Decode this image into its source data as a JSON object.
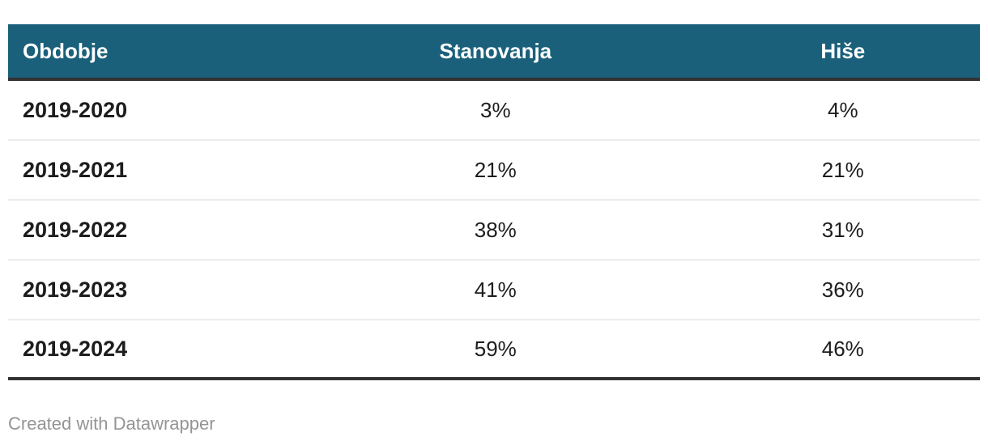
{
  "table": {
    "columns": [
      {
        "label": "Obdobje"
      },
      {
        "label": "Stanovanja"
      },
      {
        "label": "Hiše"
      }
    ],
    "rows": [
      {
        "cells": [
          "2019-2020",
          "3%",
          "4%"
        ]
      },
      {
        "cells": [
          "2019-2021",
          "21%",
          "21%"
        ]
      },
      {
        "cells": [
          "2019-2022",
          "38%",
          "31%"
        ]
      },
      {
        "cells": [
          "2019-2023",
          "41%",
          "36%"
        ]
      },
      {
        "cells": [
          "2019-2024",
          "59%",
          "46%"
        ]
      }
    ]
  },
  "footer": {
    "attribution": "Created with Datawrapper"
  },
  "colors": {
    "header_bg": "#1A607A",
    "header_text": "#FFFFFF",
    "border_dark": "#333333",
    "row_separator": "#ECECEC",
    "body_text": "#1D1D1D",
    "footer_text": "#949494"
  },
  "chart_data": {
    "type": "table",
    "columns": [
      "Obdobje",
      "Stanovanja",
      "Hiše"
    ],
    "categories": [
      "2019-2020",
      "2019-2021",
      "2019-2022",
      "2019-2023",
      "2019-2024"
    ],
    "series": [
      {
        "name": "Stanovanja",
        "values": [
          3,
          21,
          38,
          41,
          59
        ],
        "unit": "%"
      },
      {
        "name": "Hiše",
        "values": [
          4,
          21,
          31,
          36,
          46
        ],
        "unit": "%"
      }
    ],
    "rows": [
      [
        "2019-2020",
        "3%",
        "4%"
      ],
      [
        "2019-2021",
        "21%",
        "21%"
      ],
      [
        "2019-2022",
        "38%",
        "31%"
      ],
      [
        "2019-2023",
        "41%",
        "36%"
      ],
      [
        "2019-2024",
        "59%",
        "46%"
      ]
    ]
  }
}
